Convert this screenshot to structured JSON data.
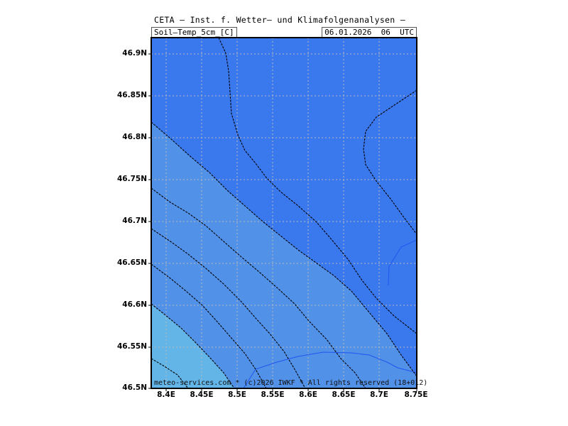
{
  "header": {
    "title": "CETA — Inst. f. Wetter— und Klimafolgenanalysen —",
    "variable": "Soil—Temp_5cm_[C]",
    "valid_time": "06.01.2026  06  UTC"
  },
  "footer": {
    "copyright": "meteo-services.com * (c)2026 IWKF * All rights reserved (18+012)"
  },
  "axes": {
    "lat_labels": [
      "46.9N",
      "46.85N",
      "46.8N",
      "46.75N",
      "46.7N",
      "46.65N",
      "46.6N",
      "46.55N",
      "46.5N"
    ],
    "lon_labels": [
      "8.4E",
      "8.45E",
      "8.5E",
      "8.55E",
      "8.6E",
      "8.65E",
      "8.7E",
      "8.75E"
    ]
  },
  "colors": {
    "shade_dark": "#3a78ee",
    "shade_mid": "#5191e8",
    "shade_light": "#63b5e8",
    "grid": "#b9b9b9",
    "contour": "#000000",
    "coast": "#2255ee"
  }
}
